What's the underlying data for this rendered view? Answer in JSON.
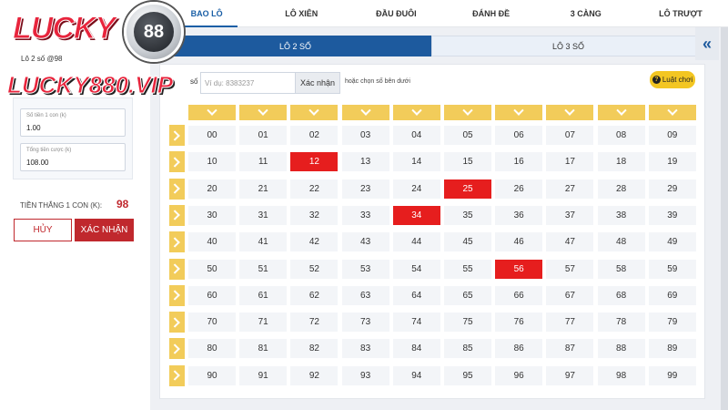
{
  "top_tabs": [
    "BAO LÔ",
    "LÔ XIÊN",
    "ĐẦU ĐUÔI",
    "ĐÁNH ĐỀ",
    "3 CÀNG",
    "LÔ TRƯỢT"
  ],
  "active_top_tab": 0,
  "sub_tabs": [
    "LÔ 2 SỐ",
    "LÔ 3 SỐ"
  ],
  "active_sub_tab": 0,
  "collapse_icon": "«",
  "logo": {
    "brand": "LUCKY",
    "number": "88",
    "watermark": "LUCKY880.VIP"
  },
  "left_panel": {
    "title": "Lô 2 số @98",
    "price_label": "Số tiền 1 con (k)",
    "price_value": "1.00",
    "total_label": "Tổng tiền cược (k)",
    "total_value": "108.00",
    "win_label": "TIỀN THẮNG 1 CON (K):",
    "win_value": "98",
    "cancel": "HỦY",
    "confirm": "XÁC NHẬN"
  },
  "search": {
    "lead": "số",
    "placeholder": "Ví dụ: 8383237",
    "button": "Xác nhận",
    "hint": "hoặc chọn số bên dưới"
  },
  "rules_button": "Luật chơi",
  "grid": {
    "numbers": [
      [
        "00",
        "01",
        "02",
        "03",
        "04",
        "05",
        "06",
        "07",
        "08",
        "09"
      ],
      [
        "10",
        "11",
        "12",
        "13",
        "14",
        "15",
        "16",
        "17",
        "18",
        "19"
      ],
      [
        "20",
        "21",
        "22",
        "23",
        "24",
        "25",
        "26",
        "27",
        "28",
        "29"
      ],
      [
        "30",
        "31",
        "32",
        "33",
        "34",
        "35",
        "36",
        "37",
        "38",
        "39"
      ],
      [
        "40",
        "41",
        "42",
        "43",
        "44",
        "45",
        "46",
        "47",
        "48",
        "49"
      ],
      [
        "50",
        "51",
        "52",
        "53",
        "54",
        "55",
        "56",
        "57",
        "58",
        "59"
      ],
      [
        "60",
        "61",
        "62",
        "63",
        "64",
        "65",
        "66",
        "67",
        "68",
        "69"
      ],
      [
        "70",
        "71",
        "72",
        "73",
        "74",
        "75",
        "76",
        "77",
        "78",
        "79"
      ],
      [
        "80",
        "81",
        "82",
        "83",
        "84",
        "85",
        "86",
        "87",
        "88",
        "89"
      ],
      [
        "90",
        "91",
        "92",
        "93",
        "94",
        "95",
        "96",
        "97",
        "98",
        "99"
      ]
    ],
    "selected": [
      "12",
      "25",
      "34",
      "56"
    ]
  },
  "colors": {
    "selected": "#e61e1e",
    "accent": "#1d5a9e",
    "gold": "#f2cc5a",
    "brand_red": "#e8243c"
  }
}
